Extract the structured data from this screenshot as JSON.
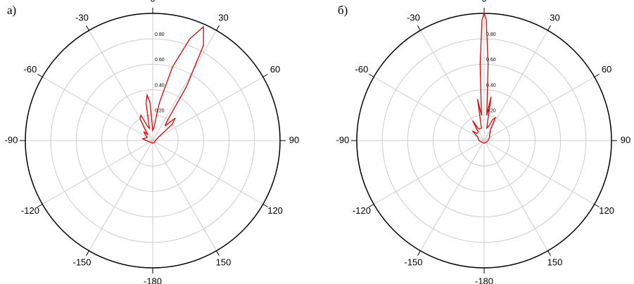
{
  "chart_data": [
    {
      "type": "polar",
      "title": "а)",
      "color": "#e00000",
      "grid": true,
      "rlim": [
        0,
        1
      ],
      "rticks": [
        {
          "value": 0.2,
          "label": "0.20"
        },
        {
          "value": 0.4,
          "label": "0.40"
        },
        {
          "value": 0.6,
          "label": "0.60"
        },
        {
          "value": 0.8,
          "label": "0.80"
        }
      ],
      "thetaticks": [
        0,
        30,
        60,
        90,
        120,
        150,
        -180,
        -150,
        -120,
        -90,
        -60,
        -30
      ],
      "theta": [
        -180,
        -135,
        -90,
        -80,
        -70,
        -60,
        -50,
        -45,
        -40,
        -35,
        -30,
        -25,
        -20,
        -15,
        -10,
        -7,
        -4,
        0,
        5,
        10,
        15,
        20,
        24,
        28,
        32,
        36,
        40,
        45,
        50,
        55,
        60,
        75,
        90,
        135,
        180
      ],
      "r": [
        0.02,
        0.02,
        0.05,
        0.08,
        0.06,
        0.05,
        0.08,
        0.1,
        0.06,
        0.1,
        0.2,
        0.22,
        0.12,
        0.1,
        0.3,
        0.36,
        0.3,
        0.08,
        0.1,
        0.3,
        0.6,
        0.85,
        0.98,
        0.85,
        0.5,
        0.2,
        0.15,
        0.25,
        0.2,
        0.08,
        0.05,
        0.03,
        0.02,
        0.02,
        0.02
      ]
    },
    {
      "type": "polar",
      "title": "б)",
      "color": "#e00000",
      "grid": true,
      "rlim": [
        0,
        1
      ],
      "rticks": [
        {
          "value": 0.2,
          "label": "0.20"
        },
        {
          "value": 0.4,
          "label": "0.40"
        },
        {
          "value": 0.6,
          "label": "0.60"
        },
        {
          "value": 0.8,
          "label": "0.80"
        }
      ],
      "thetaticks": [
        0,
        30,
        60,
        90,
        120,
        150,
        -180,
        -150,
        -120,
        -90,
        -60,
        -30
      ],
      "theta": [
        -180,
        -135,
        -90,
        -60,
        -50,
        -45,
        -35,
        -30,
        -25,
        -15,
        -12,
        -9,
        -6,
        -3,
        -1,
        0,
        1,
        3,
        6,
        9,
        12,
        18,
        22,
        26,
        30,
        45,
        60,
        90,
        135,
        180
      ],
      "r": [
        0.02,
        0.02,
        0.04,
        0.06,
        0.12,
        0.08,
        0.08,
        0.18,
        0.1,
        0.1,
        0.1,
        0.33,
        0.2,
        0.6,
        0.95,
        1.0,
        0.95,
        0.6,
        0.2,
        0.35,
        0.1,
        0.12,
        0.18,
        0.2,
        0.1,
        0.06,
        0.05,
        0.03,
        0.02,
        0.02
      ]
    }
  ]
}
